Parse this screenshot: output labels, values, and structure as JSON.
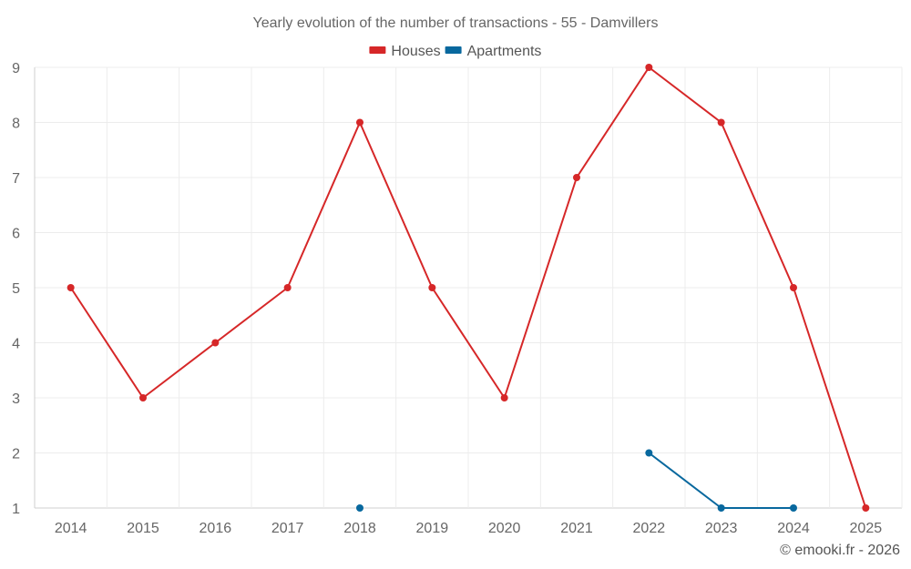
{
  "chart_data": {
    "type": "line",
    "title": "Yearly evolution of the number of transactions - 55 - Damvillers",
    "categories": [
      "2014",
      "2015",
      "2016",
      "2017",
      "2018",
      "2019",
      "2020",
      "2021",
      "2022",
      "2023",
      "2024",
      "2025"
    ],
    "ylim": [
      1,
      9
    ],
    "yticks": [
      1,
      2,
      3,
      4,
      5,
      6,
      7,
      8,
      9
    ],
    "grid": true,
    "legend_position": "top-center",
    "series": [
      {
        "name": "Houses",
        "color": "#d62728",
        "values": [
          5,
          3,
          4,
          5,
          8,
          5,
          3,
          7,
          9,
          8,
          5,
          1
        ]
      },
      {
        "name": "Apartments",
        "color": "#08689e",
        "values": [
          null,
          null,
          null,
          null,
          1,
          null,
          null,
          null,
          2,
          1,
          1,
          null
        ]
      }
    ],
    "xlabel": "",
    "ylabel": ""
  },
  "footer": {
    "credit": "© emooki.fr - 2026"
  }
}
